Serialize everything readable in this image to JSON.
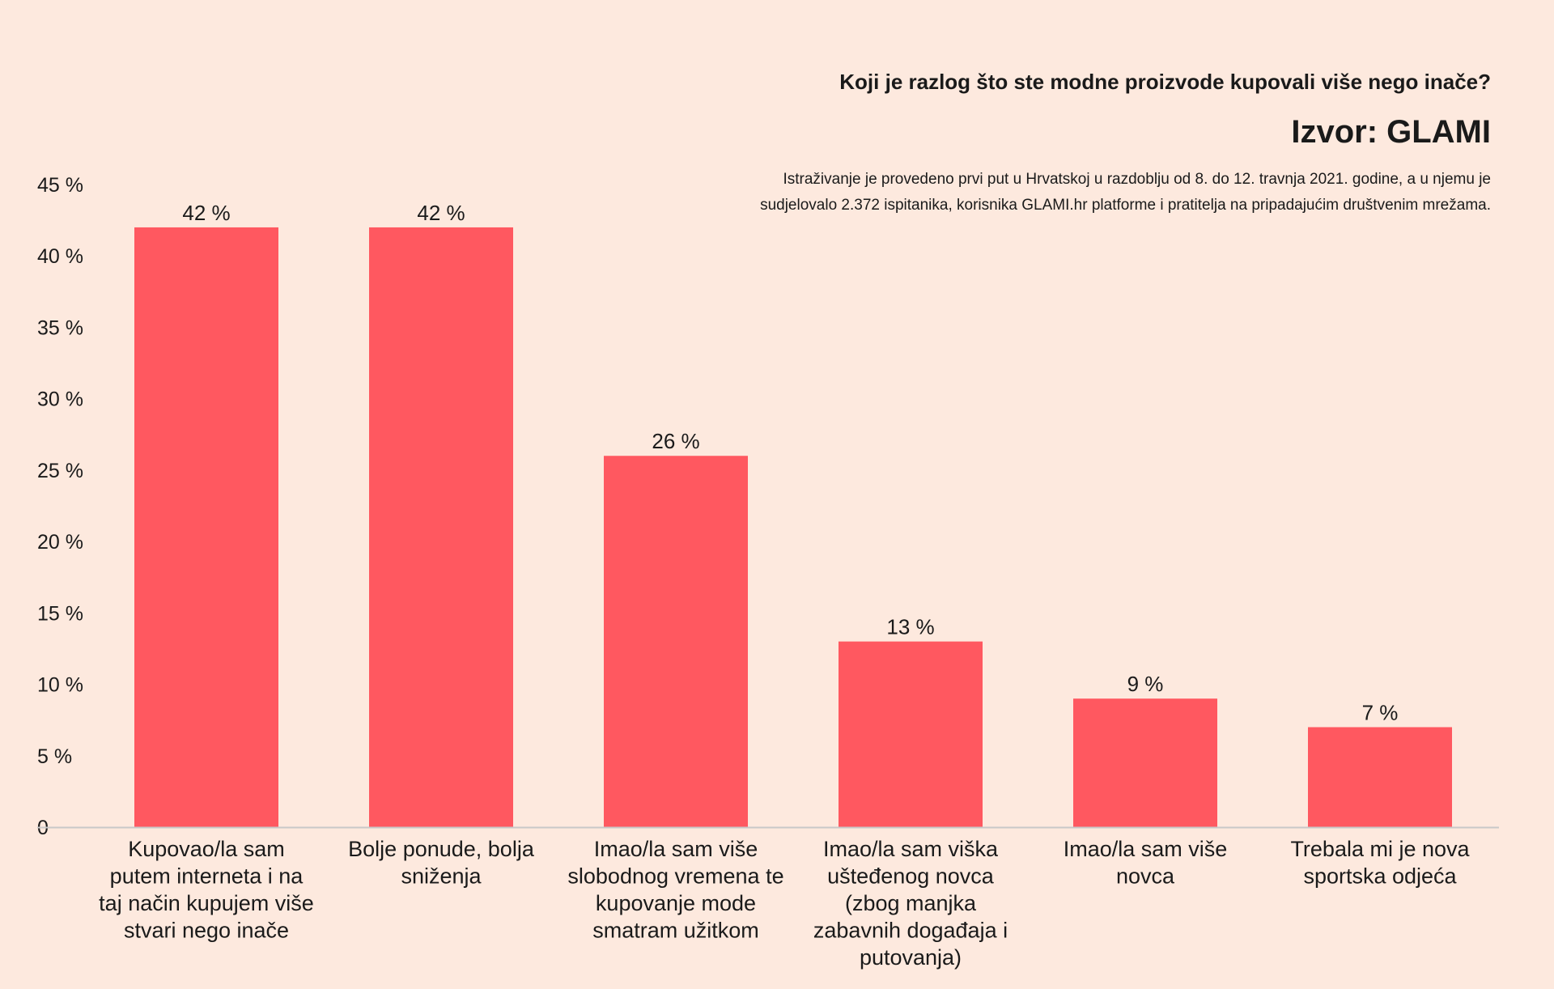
{
  "header": {
    "question": "Koji je razlog što ste modne proizvode kupovali više nego inače?",
    "source": "Izvor: GLAMI",
    "note_line1": "Istraživanje je provedeno prvi put u Hrvatskoj u razdoblju od 8. do 12. travnja 2021. godine, a u njemu je",
    "note_line2": "sudjelovalo 2.372 ispitanika, korisnika GLAMI.hr platforme i pratitelja na pripadajućim društvenim mrežama."
  },
  "colors": {
    "bar": "#ff5860",
    "background": "#fde9de",
    "axis": "#c8c8c8"
  },
  "chart_data": {
    "type": "bar",
    "title": "Koji je razlog što ste modne proizvode kupovali više nego inače?",
    "categories": [
      [
        "Kupovao/la sam",
        "putem interneta i na",
        "taj način kupujem više",
        "stvari nego inače"
      ],
      [
        "Bolje ponude, bolja",
        "sniženja"
      ],
      [
        "Imao/la sam više",
        "slobodnog vremena te",
        "kupovanje mode",
        "smatram užitkom"
      ],
      [
        "Imao/la sam viška",
        "uštеđenog novca",
        "(zbog manjka",
        "zabavnih događaja i",
        "putovanja)"
      ],
      [
        "Imao/la sam više",
        "novca"
      ],
      [
        "Trebala mi je nova",
        "sportska odjeća"
      ]
    ],
    "values": [
      42,
      42,
      26,
      13,
      9,
      7
    ],
    "value_labels": [
      "42 %",
      "42 %",
      "26 %",
      "13 %",
      "9 %",
      "7 %"
    ],
    "ylim": [
      0,
      45
    ],
    "yticks": [
      0,
      5,
      10,
      15,
      20,
      25,
      30,
      35,
      40,
      45
    ],
    "ytick_labels": [
      "0",
      "5 %",
      "10 %",
      "15 %",
      "20 %",
      "25 %",
      "30 %",
      "35 %",
      "40 %",
      "45 %"
    ],
    "grid": false,
    "legend": "none"
  }
}
